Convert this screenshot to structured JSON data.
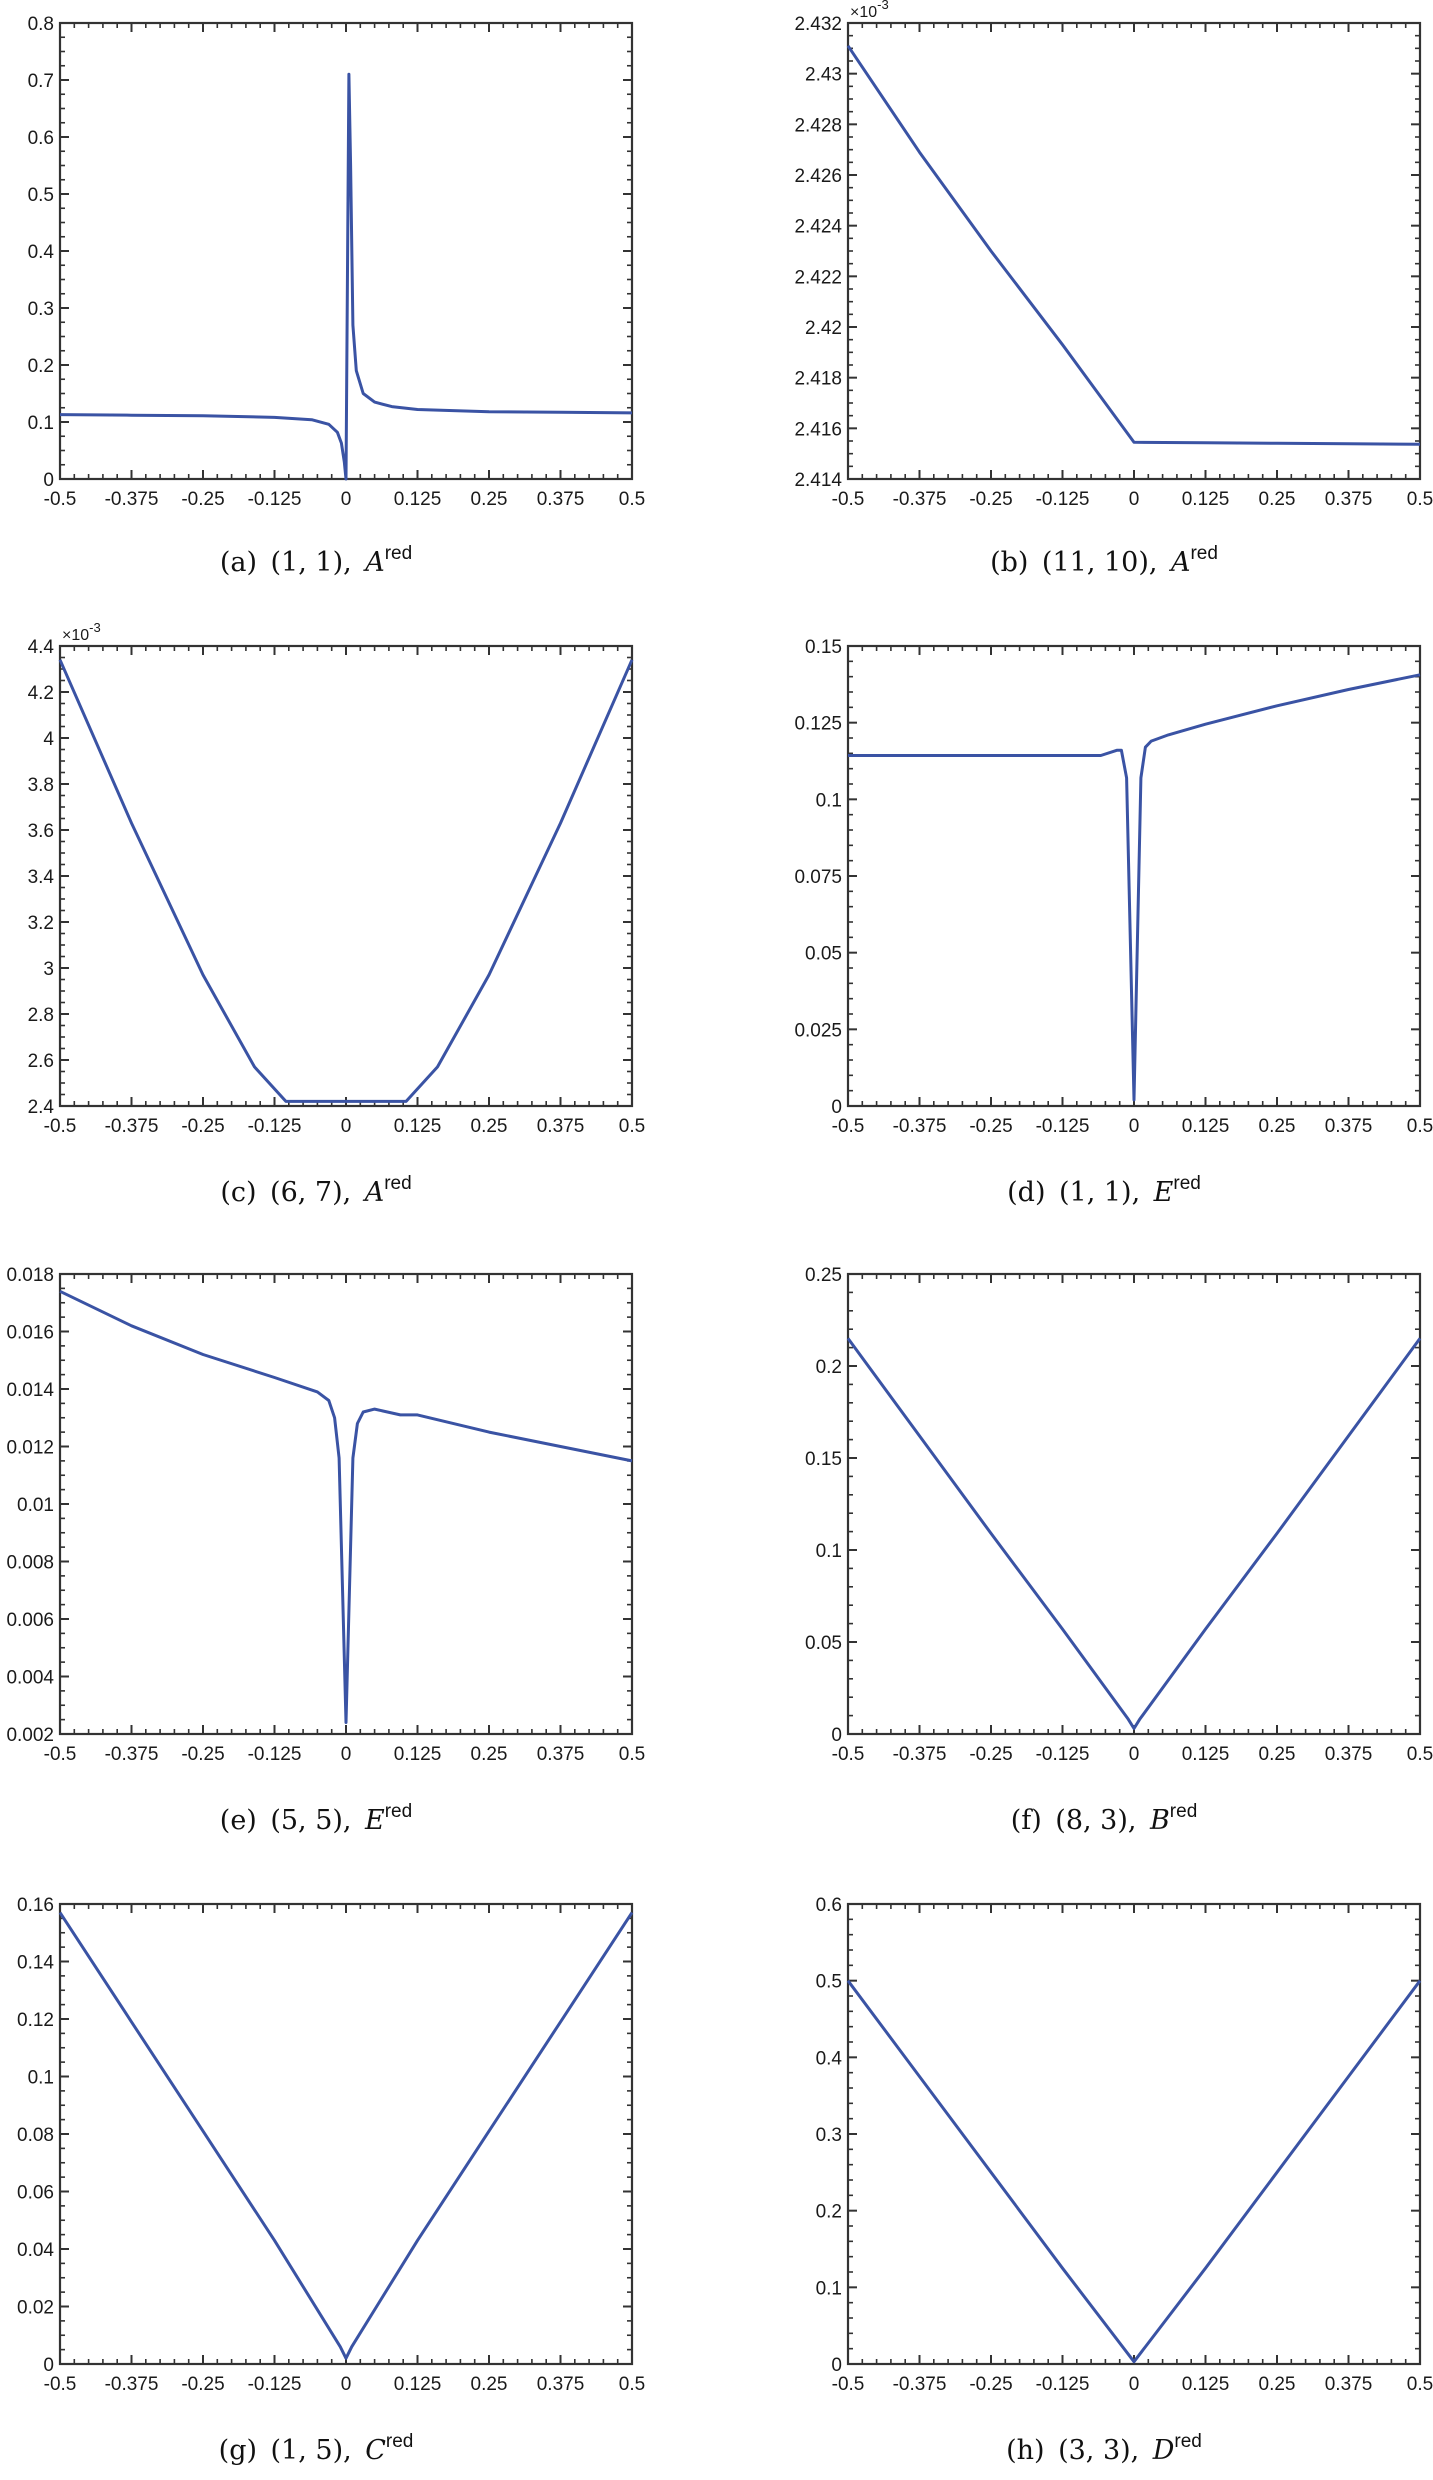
{
  "figure": {
    "line_color": "#3a53a4",
    "frame_color": "#333333",
    "panels": [
      {
        "id": "a",
        "caption_label": "(a)",
        "caption_pair": "(1, 1),",
        "caption_symbol": "A",
        "caption_sup": "red"
      },
      {
        "id": "b",
        "caption_label": "(b)",
        "caption_pair": "(11, 10),",
        "caption_symbol": "A",
        "caption_sup": "red"
      },
      {
        "id": "c",
        "caption_label": "(c)",
        "caption_pair": "(6, 7),",
        "caption_symbol": "A",
        "caption_sup": "red"
      },
      {
        "id": "d",
        "caption_label": "(d)",
        "caption_pair": "(1, 1),",
        "caption_symbol": "E",
        "caption_sup": "red"
      },
      {
        "id": "e",
        "caption_label": "(e)",
        "caption_pair": "(5, 5),",
        "caption_symbol": "E",
        "caption_sup": "red"
      },
      {
        "id": "f",
        "caption_label": "(f)",
        "caption_pair": "(8, 3),",
        "caption_symbol": "B",
        "caption_sup": "red"
      },
      {
        "id": "g",
        "caption_label": "(g)",
        "caption_pair": "(1, 5),",
        "caption_symbol": "C",
        "caption_sup": "red"
      },
      {
        "id": "h",
        "caption_label": "(h)",
        "caption_pair": "(3, 3),",
        "caption_symbol": "D",
        "caption_sup": "red"
      }
    ]
  },
  "chart_data": [
    {
      "type": "line",
      "panel": "a",
      "title": "(a) (1,1), A^red",
      "xlabel": "",
      "ylabel": "",
      "xlim": [
        -0.5,
        0.5
      ],
      "ylim": [
        0,
        0.8
      ],
      "grid": false,
      "xticks": [
        "-0.5",
        "-0.375",
        "-0.25",
        "-0.125",
        "0",
        "0.125",
        "0.25",
        "0.375",
        "0.5"
      ],
      "yticks": [
        "0",
        "0.1",
        "0.2",
        "0.3",
        "0.4",
        "0.5",
        "0.6",
        "0.7",
        "0.8"
      ],
      "y_multiplier": "",
      "x": [
        -0.5,
        -0.375,
        -0.25,
        -0.125,
        -0.06,
        -0.03,
        -0.015,
        -0.008,
        -0.003,
        0.0,
        0.005,
        0.008,
        0.012,
        0.018,
        0.03,
        0.05,
        0.08,
        0.125,
        0.25,
        0.375,
        0.5
      ],
      "y": [
        0.113,
        0.112,
        0.111,
        0.108,
        0.104,
        0.096,
        0.082,
        0.063,
        0.03,
        0.0,
        0.71,
        0.55,
        0.27,
        0.19,
        0.15,
        0.135,
        0.127,
        0.122,
        0.118,
        0.117,
        0.116
      ]
    },
    {
      "type": "line",
      "panel": "b",
      "title": "(b) (11,10), A^red",
      "xlabel": "",
      "ylabel": "",
      "xlim": [
        -0.5,
        0.5
      ],
      "ylim": [
        2.414,
        2.432
      ],
      "grid": false,
      "xticks": [
        "-0.5",
        "-0.375",
        "-0.25",
        "-0.125",
        "0",
        "0.125",
        "0.25",
        "0.375",
        "0.5"
      ],
      "yticks": [
        "2.414",
        "2.416",
        "2.418",
        "2.42",
        "2.422",
        "2.424",
        "2.426",
        "2.428",
        "2.43",
        "2.432"
      ],
      "y_multiplier": "×10-3",
      "x": [
        -0.5,
        -0.375,
        -0.25,
        -0.125,
        0.0,
        0.125,
        0.25,
        0.375,
        0.5
      ],
      "y": [
        2.4311,
        2.4269,
        2.423,
        2.4193,
        2.41545,
        2.41543,
        2.41541,
        2.41539,
        2.41537
      ]
    },
    {
      "type": "line",
      "panel": "c",
      "title": "(c) (6,7), A^red",
      "xlabel": "",
      "ylabel": "",
      "xlim": [
        -0.5,
        0.5
      ],
      "ylim": [
        2.4,
        4.4
      ],
      "grid": false,
      "xticks": [
        "-0.5",
        "-0.375",
        "-0.25",
        "-0.125",
        "0",
        "0.125",
        "0.25",
        "0.375",
        "0.5"
      ],
      "yticks": [
        "2.4",
        "2.6",
        "2.8",
        "3",
        "3.2",
        "3.4",
        "3.6",
        "3.8",
        "4",
        "4.2",
        "4.4"
      ],
      "y_multiplier": "×10-3",
      "x": [
        -0.5,
        -0.375,
        -0.25,
        -0.16,
        -0.105,
        0.0,
        0.105,
        0.16,
        0.25,
        0.375,
        0.5
      ],
      "y": [
        4.34,
        3.63,
        2.97,
        2.57,
        2.42,
        2.42,
        2.42,
        2.57,
        2.97,
        3.63,
        4.34
      ]
    },
    {
      "type": "line",
      "panel": "d",
      "title": "(d) (1,1), E^red",
      "xlabel": "",
      "ylabel": "",
      "xlim": [
        -0.5,
        0.5
      ],
      "ylim": [
        0,
        0.15
      ],
      "grid": false,
      "xticks": [
        "-0.5",
        "-0.375",
        "-0.25",
        "-0.125",
        "0",
        "0.125",
        "0.25",
        "0.375",
        "0.5"
      ],
      "yticks": [
        "0",
        "0.025",
        "0.05",
        "0.075",
        "0.1",
        "0.125",
        "0.15"
      ],
      "y_multiplier": "",
      "x": [
        -0.5,
        -0.375,
        -0.25,
        -0.125,
        -0.058,
        -0.03,
        -0.022,
        -0.013,
        0.0,
        0.012,
        0.02,
        0.03,
        0.06,
        0.125,
        0.25,
        0.375,
        0.5
      ],
      "y": [
        0.1143,
        0.1143,
        0.1143,
        0.1143,
        0.1143,
        0.116,
        0.116,
        0.107,
        0.002,
        0.107,
        0.117,
        0.119,
        0.121,
        0.1245,
        0.1305,
        0.1358,
        0.1406
      ]
    },
    {
      "type": "line",
      "panel": "e",
      "title": "(e) (5,5), E^red",
      "xlabel": "",
      "ylabel": "",
      "xlim": [
        -0.5,
        0.5
      ],
      "ylim": [
        0.002,
        0.018
      ],
      "grid": false,
      "xticks": [
        "-0.5",
        "-0.375",
        "-0.25",
        "-0.125",
        "0",
        "0.125",
        "0.25",
        "0.375",
        "0.5"
      ],
      "yticks": [
        "0.002",
        "0.004",
        "0.006",
        "0.008",
        "0.01",
        "0.012",
        "0.014",
        "0.016",
        "0.018"
      ],
      "y_multiplier": "",
      "x": [
        -0.5,
        -0.375,
        -0.25,
        -0.125,
        -0.05,
        -0.03,
        -0.02,
        -0.012,
        0.0,
        0.012,
        0.02,
        0.03,
        0.05,
        0.095,
        0.125,
        0.25,
        0.375,
        0.5
      ],
      "y": [
        0.0174,
        0.0162,
        0.0152,
        0.0144,
        0.0139,
        0.0136,
        0.013,
        0.0116,
        0.0024,
        0.0116,
        0.0128,
        0.0132,
        0.0133,
        0.0131,
        0.0131,
        0.0125,
        0.012,
        0.0115
      ]
    },
    {
      "type": "line",
      "panel": "f",
      "title": "(f) (8,3), B^red",
      "xlabel": "",
      "ylabel": "",
      "xlim": [
        -0.5,
        0.5
      ],
      "ylim": [
        0,
        0.25
      ],
      "grid": false,
      "xticks": [
        "-0.5",
        "-0.375",
        "-0.25",
        "-0.125",
        "0",
        "0.125",
        "0.25",
        "0.375",
        "0.5"
      ],
      "yticks": [
        "0",
        "0.05",
        "0.1",
        "0.15",
        "0.2",
        "0.25"
      ],
      "y_multiplier": "",
      "x": [
        -0.5,
        -0.375,
        -0.25,
        -0.125,
        -0.01,
        0.0,
        0.01,
        0.125,
        0.25,
        0.375,
        0.5
      ],
      "y": [
        0.215,
        0.162,
        0.109,
        0.057,
        0.008,
        0.003,
        0.008,
        0.057,
        0.109,
        0.162,
        0.215
      ]
    },
    {
      "type": "line",
      "panel": "g",
      "title": "(g) (1,5), C^red",
      "xlabel": "",
      "ylabel": "",
      "xlim": [
        -0.5,
        0.5
      ],
      "ylim": [
        0,
        0.16
      ],
      "grid": false,
      "xticks": [
        "-0.5",
        "-0.375",
        "-0.25",
        "-0.125",
        "0",
        "0.125",
        "0.25",
        "0.375",
        "0.5"
      ],
      "yticks": [
        "0",
        "0.02",
        "0.04",
        "0.06",
        "0.08",
        "0.1",
        "0.12",
        "0.14",
        "0.16"
      ],
      "y_multiplier": "",
      "x": [
        -0.5,
        -0.375,
        -0.25,
        -0.125,
        -0.01,
        0.0,
        0.01,
        0.125,
        0.25,
        0.375,
        0.5
      ],
      "y": [
        0.157,
        0.119,
        0.081,
        0.043,
        0.006,
        0.002,
        0.006,
        0.043,
        0.081,
        0.119,
        0.157
      ]
    },
    {
      "type": "line",
      "panel": "h",
      "title": "(h) (3,3), D^red",
      "xlabel": "",
      "ylabel": "",
      "xlim": [
        -0.5,
        0.5
      ],
      "ylim": [
        0,
        0.6
      ],
      "grid": false,
      "xticks": [
        "-0.5",
        "-0.375",
        "-0.25",
        "-0.125",
        "0",
        "0.125",
        "0.25",
        "0.375",
        "0.5"
      ],
      "yticks": [
        "0",
        "0.1",
        "0.2",
        "0.3",
        "0.4",
        "0.5",
        "0.6"
      ],
      "y_multiplier": "",
      "x": [
        -0.5,
        -0.375,
        -0.25,
        -0.125,
        0.0,
        0.125,
        0.25,
        0.375,
        0.5
      ],
      "y": [
        0.5,
        0.375,
        0.25,
        0.125,
        0.003,
        0.125,
        0.25,
        0.375,
        0.5
      ]
    }
  ]
}
